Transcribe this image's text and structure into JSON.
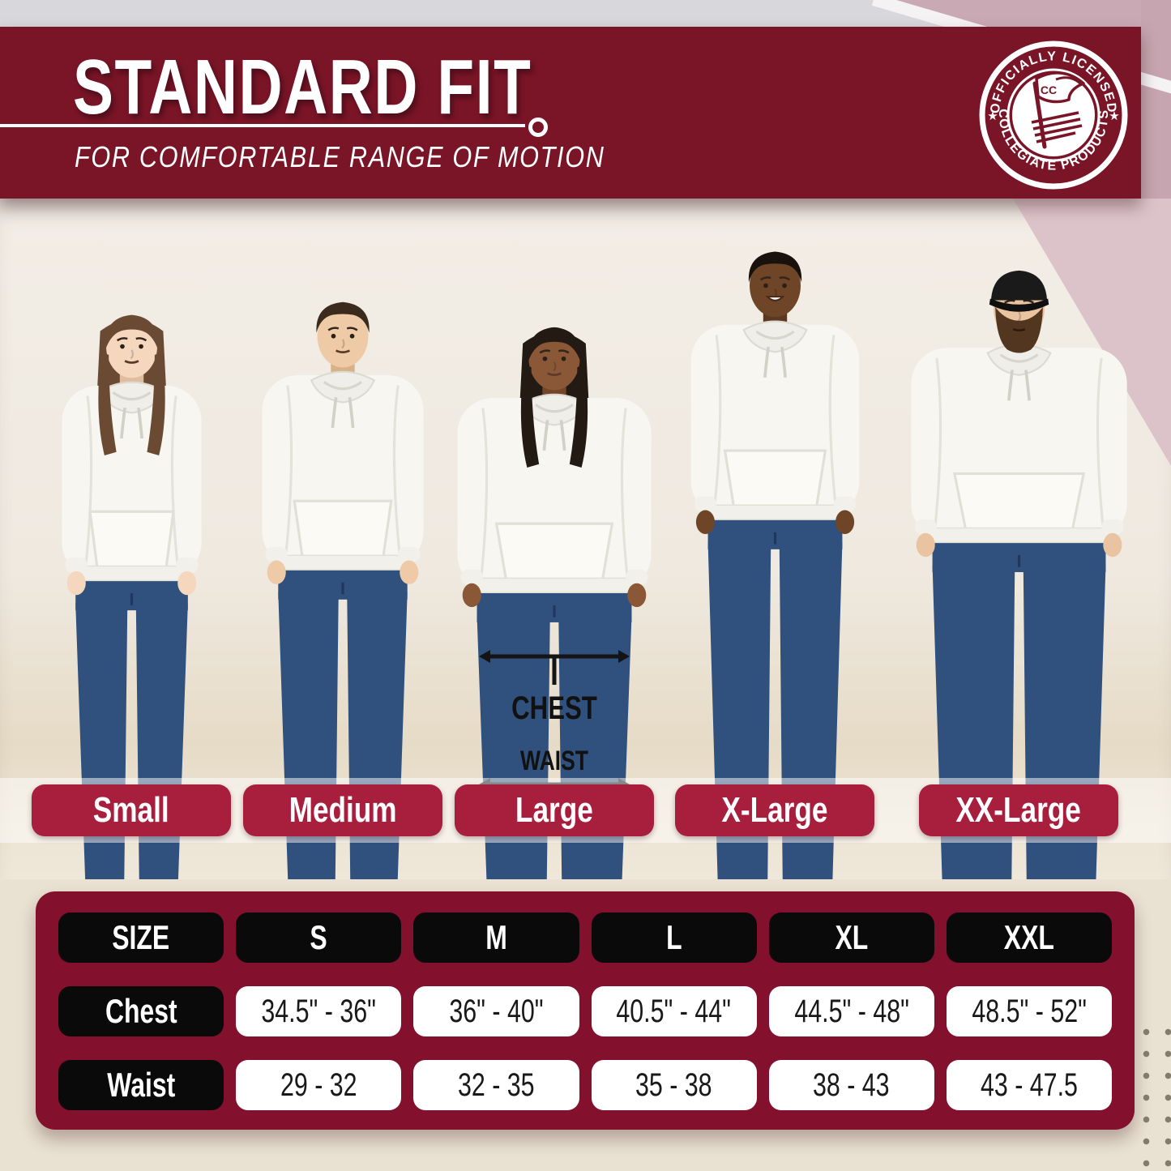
{
  "header": {
    "title": "STANDARD FIT",
    "subtitle": "FOR COMFORTABLE RANGE OF MOTION",
    "badge": {
      "arc_top": "OFFICIALLY LICENSED",
      "arc_bottom": "COLLEGIATE PRODUCTS",
      "monogram": "CC",
      "star": "★"
    }
  },
  "figure_annotations": {
    "chest_label": "CHEST",
    "waist_label": "WAIST"
  },
  "size_labels": [
    "Small",
    "Medium",
    "Large",
    "X-Large",
    "XX-Large"
  ],
  "chart_data": {
    "type": "table",
    "title": "Standard Fit hoodie size chart (inches)",
    "columns": [
      "SIZE",
      "S",
      "M",
      "L",
      "XL",
      "XXL"
    ],
    "rows": [
      {
        "label": "Chest",
        "values": [
          "34.5\" - 36\"",
          "36\" - 40\"",
          "40.5\" - 44\"",
          "44.5\" - 48\"",
          "48.5\" - 52\""
        ]
      },
      {
        "label": "Waist",
        "values": [
          "29 - 32",
          "32 - 35",
          "35 - 38",
          "38 - 43",
          "43 - 47.5"
        ]
      }
    ]
  },
  "colors": {
    "header_maroon": "#7a1527",
    "table_maroon": "#83102d",
    "pill_red": "#a81e3d",
    "pill_black": "#0b0a0a",
    "accent_mauve": "#c9a9b4",
    "accent_rose": "#dcc3c9"
  }
}
